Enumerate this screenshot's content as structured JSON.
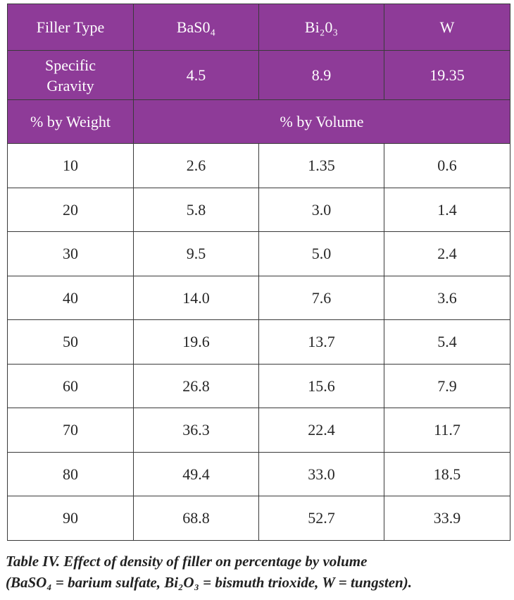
{
  "table": {
    "header_rows": [
      [
        "Filler Type",
        "BaS0₄",
        "Bi₂0₃",
        "W"
      ],
      [
        "Specific Gravity",
        "4.5",
        "8.9",
        "19.35"
      ]
    ],
    "group_row": [
      "% by Weight",
      "% by Volume"
    ],
    "rows": [
      [
        "10",
        "2.6",
        "1.35",
        "0.6"
      ],
      [
        "20",
        "5.8",
        "3.0",
        "1.4"
      ],
      [
        "30",
        "9.5",
        "5.0",
        "2.4"
      ],
      [
        "40",
        "14.0",
        "7.6",
        "3.6"
      ],
      [
        "50",
        "19.6",
        "13.7",
        "5.4"
      ],
      [
        "60",
        "26.8",
        "15.6",
        "7.9"
      ],
      [
        "70",
        "36.3",
        "22.4",
        "11.7"
      ],
      [
        "80",
        "49.4",
        "33.0",
        "18.5"
      ],
      [
        "90",
        "68.8",
        "52.7",
        "33.9"
      ]
    ]
  },
  "caption": [
    "Table IV. Effect of density of filler on percentage by volume",
    "(BaSO₄ = barium sulfate, Bi₂O₃ = bismuth trioxide, W = tungsten)."
  ]
}
